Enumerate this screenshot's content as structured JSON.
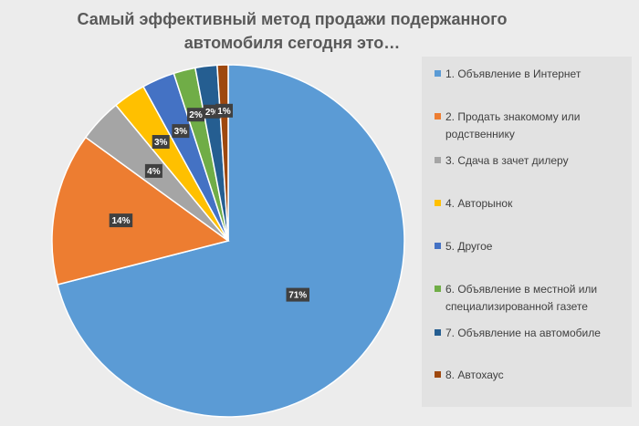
{
  "chart_data": {
    "type": "pie",
    "title": "Самый эффективный метод продажи подержанного автомобиля сегодня это…",
    "categories": [
      "1. Объявление в Интернет",
      "2. Продать знакомому или родственнику",
      "3. Сдача в зачет дилеру",
      "4. Авторынок",
      "5. Другое",
      "6. Объявление в местной или специализированной газете",
      "7. Объявление на автомобиле",
      "8. Автохаус"
    ],
    "values": [
      71,
      14,
      4,
      3,
      3,
      2,
      2,
      1
    ],
    "data_labels": [
      "71%",
      "14%",
      "4%",
      "3%",
      "3%",
      "2%",
      "2%",
      "1%"
    ],
    "colors": [
      "#5b9bd5",
      "#ed7d31",
      "#a5a5a5",
      "#ffc000",
      "#4472c4",
      "#70ad47",
      "#255e91",
      "#9e480e"
    ],
    "legend_position": "right"
  }
}
